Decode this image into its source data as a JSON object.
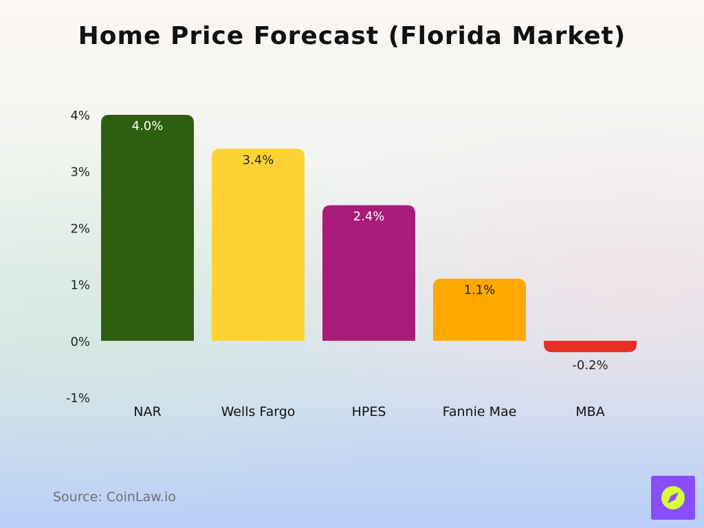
{
  "chart_data": {
    "type": "bar",
    "title": "Home Price Forecast (Florida Market)",
    "categories": [
      "NAR",
      "Wells Fargo",
      "HPES",
      "Fannie Mae",
      "MBA"
    ],
    "values": [
      4.0,
      3.4,
      2.4,
      1.1,
      -0.2
    ],
    "data_labels": [
      "4.0%",
      "3.4%",
      "2.4%",
      "1.1%",
      "-0.2%"
    ],
    "colors": [
      "#2e5e10",
      "#ffd233",
      "#a91b78",
      "#ffa800",
      "#e63024"
    ],
    "label_colors": [
      "#ffffff",
      "#222222",
      "#ffffff",
      "#222222",
      "#222222"
    ],
    "y_ticks": [
      4,
      3,
      2,
      1,
      0,
      -1
    ],
    "y_tick_labels": [
      "4%",
      "3%",
      "2%",
      "1%",
      "0%",
      "-1%"
    ],
    "ylim": [
      -1,
      4
    ],
    "grid": false,
    "legend": "none"
  },
  "footer": {
    "source": "Source: CoinLaw.io"
  },
  "logo": {
    "icon": "compass-icon",
    "background": "#8a4cff",
    "accent": "#d4ff3a"
  }
}
